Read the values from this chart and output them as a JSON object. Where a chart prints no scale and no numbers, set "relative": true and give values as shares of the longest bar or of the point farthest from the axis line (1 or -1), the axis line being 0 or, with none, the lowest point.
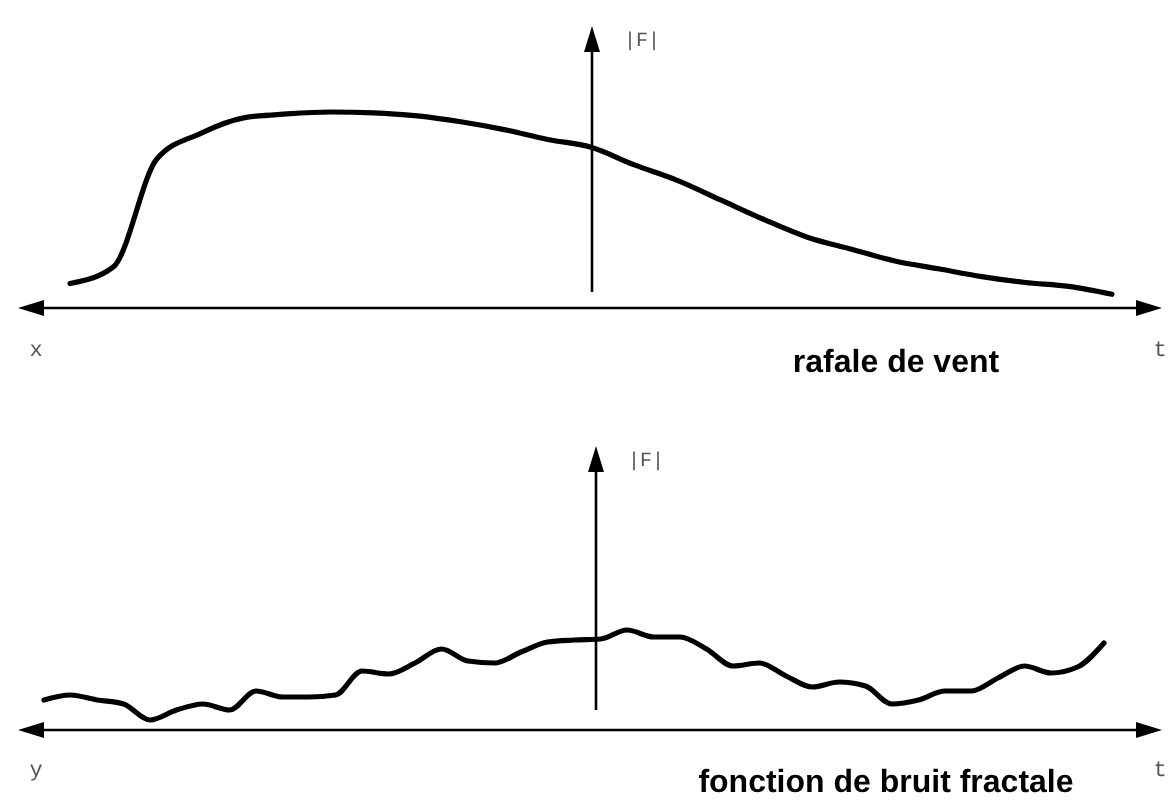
{
  "chart_data": [
    {
      "type": "line",
      "title": "rafale de vent",
      "xlabel": "t",
      "ylabel": "|F|",
      "annotations": [
        "x"
      ],
      "relative": true,
      "color": "#000000",
      "categories": [
        null,
        null,
        null,
        null,
        null,
        null,
        null,
        null,
        null,
        null,
        null,
        null,
        null,
        null,
        null,
        null,
        null,
        null,
        null,
        null,
        null,
        null,
        null,
        null,
        null
      ],
      "values": [
        0.125,
        0.21,
        0.76,
        0.89,
        0.97,
        0.99,
        1,
        0.996,
        0.98,
        0.95,
        0.91,
        0.86,
        0.82,
        0.73,
        0.65,
        0.55,
        0.45,
        0.36,
        0.3,
        0.24,
        0.2,
        0.16,
        0.13,
        0.11,
        0.07
      ]
    },
    {
      "type": "line",
      "title": "fonction de bruit fractale",
      "xlabel": "t",
      "ylabel": "|F|",
      "annotations": [
        "y"
      ],
      "relative": true,
      "color": "#000000",
      "categories": [
        null,
        null,
        null,
        null,
        null,
        null,
        null,
        null,
        null,
        null,
        null,
        null,
        null,
        null,
        null,
        null,
        null,
        null,
        null,
        null,
        null,
        null,
        null,
        null,
        null,
        null,
        null,
        null,
        null,
        null,
        null,
        null,
        null,
        null,
        null,
        null,
        null,
        null,
        null,
        null,
        null
      ],
      "values": [
        0.3,
        0.35,
        0.3,
        0.26,
        0.1,
        0.2,
        0.26,
        0.2,
        0.39,
        0.33,
        0.33,
        0.35,
        0.59,
        0.56,
        0.67,
        0.81,
        0.69,
        0.67,
        0.78,
        0.88,
        0.9,
        0.91,
        1,
        0.93,
        0.93,
        0.81,
        0.64,
        0.67,
        0.54,
        0.43,
        0.48,
        0.44,
        0.26,
        0.3,
        0.39,
        0.39,
        0.52,
        0.64,
        0.57,
        0.63,
        0.87
      ]
    }
  ]
}
